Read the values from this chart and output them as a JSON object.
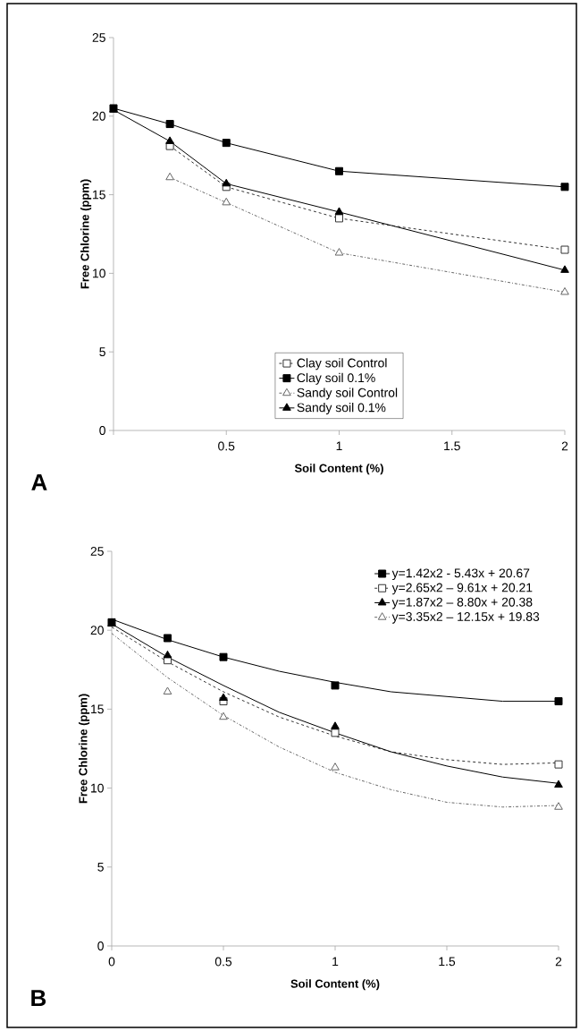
{
  "chart_data": [
    {
      "type": "line",
      "xlabel": "Soil Content (%)",
      "ylabel": "Free Chlorine (ppm)",
      "annotations": [
        "A"
      ],
      "x": [
        0,
        0.25,
        0.5,
        1,
        2
      ],
      "xlim": [
        0,
        2
      ],
      "ylim": [
        0,
        25
      ],
      "xticks": [
        {
          "value": 0,
          "label": null
        },
        0.5,
        1,
        1.5,
        2
      ],
      "yticks": [
        0,
        5,
        10,
        15,
        20,
        25
      ],
      "legend": "bottom",
      "series": [
        {
          "name": "Clay soil Control",
          "color": "#333333",
          "marker": "square",
          "line_style": "dashed",
          "values": [
            null,
            18.1,
            15.5,
            13.5,
            11.5
          ]
        },
        {
          "name": "Clay soil 0.1%",
          "color": "#000000",
          "marker": "square",
          "line_style": "solid",
          "values": [
            20.5,
            19.5,
            18.3,
            16.5,
            15.5
          ]
        },
        {
          "name": "Sandy soil Control",
          "color": "#666666",
          "marker": "triangle",
          "line_style": "dashdot",
          "values": [
            null,
            16.1,
            14.5,
            11.3,
            8.8
          ]
        },
        {
          "name": "Sandy soil 0.1%",
          "color": "#000000",
          "marker": "triangle",
          "line_style": "solid",
          "values": [
            20.4,
            18.4,
            15.7,
            13.9,
            10.2
          ]
        }
      ]
    },
    {
      "type": "scatter",
      "xlabel": "Soil Content (%)",
      "ylabel": "Free Chlorine (ppm)",
      "annotations": [
        "B"
      ],
      "x": [
        0,
        0.25,
        0.5,
        1,
        2
      ],
      "xlim": [
        0,
        2
      ],
      "ylim": [
        0,
        25
      ],
      "xticks": [
        0,
        0.5,
        1,
        1.5,
        2
      ],
      "yticks": [
        0,
        5,
        10,
        15,
        20,
        25
      ],
      "legend": "top right",
      "series": [
        {
          "type": "line",
          "color": "#000000",
          "line_style": "solid",
          "x": [
            0,
            0.25,
            0.5,
            0.75,
            1,
            1.25,
            1.5,
            1.75,
            2
          ],
          "values": [
            20.7,
            19.4,
            18.3,
            17.4,
            16.7,
            16.1,
            15.8,
            15.5,
            15.5
          ]
        },
        {
          "type": "line",
          "color": "#333333",
          "line_style": "dashed",
          "x": [
            0,
            0.25,
            0.5,
            0.75,
            1,
            1.25,
            1.5,
            1.75,
            2
          ],
          "values": [
            20.2,
            18.0,
            16.1,
            14.5,
            13.3,
            12.3,
            11.8,
            11.5,
            11.6
          ]
        },
        {
          "type": "line",
          "color": "#000000",
          "line_style": "solid",
          "x": [
            0,
            0.25,
            0.5,
            0.75,
            1,
            1.25,
            1.5,
            1.75,
            2
          ],
          "values": [
            20.4,
            18.3,
            16.5,
            14.8,
            13.5,
            12.3,
            11.4,
            10.7,
            10.3
          ]
        },
        {
          "type": "line",
          "color": "#666666",
          "line_style": "dashdot",
          "x": [
            0,
            0.25,
            0.5,
            0.75,
            1,
            1.25,
            1.5,
            1.75,
            2
          ],
          "values": [
            19.8,
            17.0,
            14.6,
            12.6,
            11.0,
            9.9,
            9.1,
            8.8,
            8.9
          ]
        },
        {
          "name": "y=1.42x2 - 5.43x + 20.67",
          "color": "#000000",
          "marker": "square",
          "line_style": "solid",
          "values": [
            20.5,
            19.5,
            18.3,
            16.5,
            15.5
          ]
        },
        {
          "name": "y=2.65x2 – 9.61x + 20.21",
          "color": "#333333",
          "marker": "square",
          "line_style": "dashed",
          "values": [
            null,
            18.1,
            15.5,
            13.5,
            11.5
          ]
        },
        {
          "name": "y=1.87x2 – 8.80x + 20.38",
          "color": "#000000",
          "marker": "triangle",
          "line_style": "solid",
          "values": [
            20.4,
            18.4,
            15.7,
            13.9,
            10.2
          ]
        },
        {
          "name": "y=3.35x2 – 12.15x + 19.83",
          "color": "#666666",
          "marker": "triangle",
          "line_style": "dashdot",
          "values": [
            null,
            16.1,
            14.5,
            11.3,
            8.8
          ]
        }
      ]
    }
  ]
}
